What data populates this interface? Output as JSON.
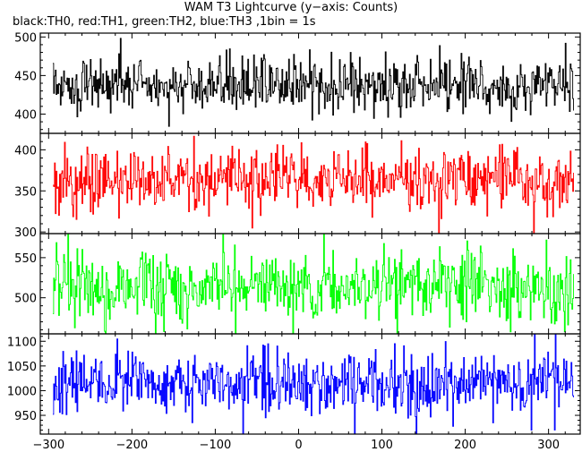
{
  "title": "WAM T3 Lightcurve (y−axis: Counts)",
  "subtitle": "black:TH0, red:TH1, green:TH2, blue:TH3 ,1bin = 1s",
  "chart_data": {
    "type": "line",
    "title": "WAM T3 Lightcurve (y−axis: Counts)",
    "subtitle": "black:TH0, red:TH1, green:TH2, blue:TH3 ,1bin = 1s",
    "ylabel": "Counts",
    "xlim": [
      -310,
      338
    ],
    "x_range_data": [
      -295,
      330
    ],
    "bin_seconds": 1,
    "x_ticks": [
      -300,
      -200,
      -100,
      0,
      100,
      200,
      300
    ],
    "grid": false,
    "series": [
      {
        "name": "TH0",
        "color": "#000000",
        "ylim": [
          375,
          505
        ],
        "yticks": [
          400,
          450,
          500
        ],
        "mean": 438,
        "spread": 17
      },
      {
        "name": "TH1",
        "color": "#ff0000",
        "ylim": [
          298,
          420
        ],
        "yticks": [
          300,
          350,
          400
        ],
        "mean": 363,
        "spread": 19
      },
      {
        "name": "TH2",
        "color": "#00ff00",
        "ylim": [
          455,
          580
        ],
        "yticks": [
          500,
          550
        ],
        "mean": 515,
        "spread": 22
      },
      {
        "name": "TH3",
        "color": "#0000ff",
        "ylim": [
          912,
          1115
        ],
        "yticks": [
          950,
          1000,
          1050,
          1100
        ],
        "mean": 1015,
        "spread": 32
      }
    ]
  }
}
